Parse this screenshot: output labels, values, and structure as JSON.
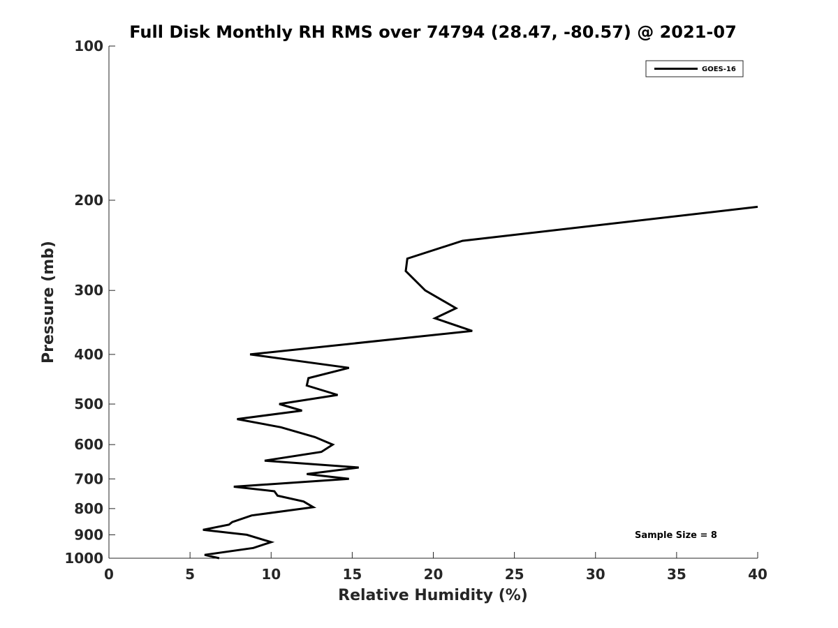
{
  "chart_data": {
    "type": "line",
    "title": "Full Disk Monthly RH RMS over 74794 (28.47, -80.57) @ 2021-07",
    "xlabel": "Relative Humidity (%)",
    "ylabel": "Pressure (mb)",
    "xlim": [
      0,
      40
    ],
    "ylim": [
      100,
      1000
    ],
    "y_scale": "log",
    "y_reversed": true,
    "x_ticks": [
      0,
      5,
      10,
      15,
      20,
      25,
      30,
      35,
      40
    ],
    "y_ticks": [
      100,
      200,
      300,
      400,
      500,
      600,
      700,
      800,
      900,
      1000
    ],
    "grid": false,
    "legend_position": "top-right",
    "annotation": "Sample Size = 8",
    "series": [
      {
        "name": "GOES-16",
        "color": "#000000",
        "points": [
          {
            "x": 6.8,
            "y": 1000
          },
          {
            "x": 5.9,
            "y": 985
          },
          {
            "x": 8.9,
            "y": 955
          },
          {
            "x": 10.0,
            "y": 930
          },
          {
            "x": 8.5,
            "y": 900
          },
          {
            "x": 5.8,
            "y": 880
          },
          {
            "x": 7.4,
            "y": 860
          },
          {
            "x": 7.6,
            "y": 850
          },
          {
            "x": 8.8,
            "y": 825
          },
          {
            "x": 12.6,
            "y": 795
          },
          {
            "x": 12.0,
            "y": 775
          },
          {
            "x": 10.4,
            "y": 755
          },
          {
            "x": 10.2,
            "y": 740
          },
          {
            "x": 7.7,
            "y": 725
          },
          {
            "x": 14.8,
            "y": 700
          },
          {
            "x": 12.2,
            "y": 685
          },
          {
            "x": 15.4,
            "y": 665
          },
          {
            "x": 9.6,
            "y": 645
          },
          {
            "x": 13.1,
            "y": 620
          },
          {
            "x": 13.8,
            "y": 600
          },
          {
            "x": 12.7,
            "y": 580
          },
          {
            "x": 10.6,
            "y": 555
          },
          {
            "x": 7.9,
            "y": 535
          },
          {
            "x": 11.9,
            "y": 515
          },
          {
            "x": 10.5,
            "y": 500
          },
          {
            "x": 14.1,
            "y": 480
          },
          {
            "x": 12.2,
            "y": 460
          },
          {
            "x": 12.3,
            "y": 445
          },
          {
            "x": 14.8,
            "y": 425
          },
          {
            "x": 8.7,
            "y": 400
          },
          {
            "x": 22.4,
            "y": 360
          },
          {
            "x": 20.1,
            "y": 340
          },
          {
            "x": 21.4,
            "y": 325
          },
          {
            "x": 19.5,
            "y": 300
          },
          {
            "x": 18.3,
            "y": 275
          },
          {
            "x": 18.4,
            "y": 260
          },
          {
            "x": 21.8,
            "y": 240
          },
          {
            "x": 40.0,
            "y": 206
          }
        ]
      }
    ]
  }
}
